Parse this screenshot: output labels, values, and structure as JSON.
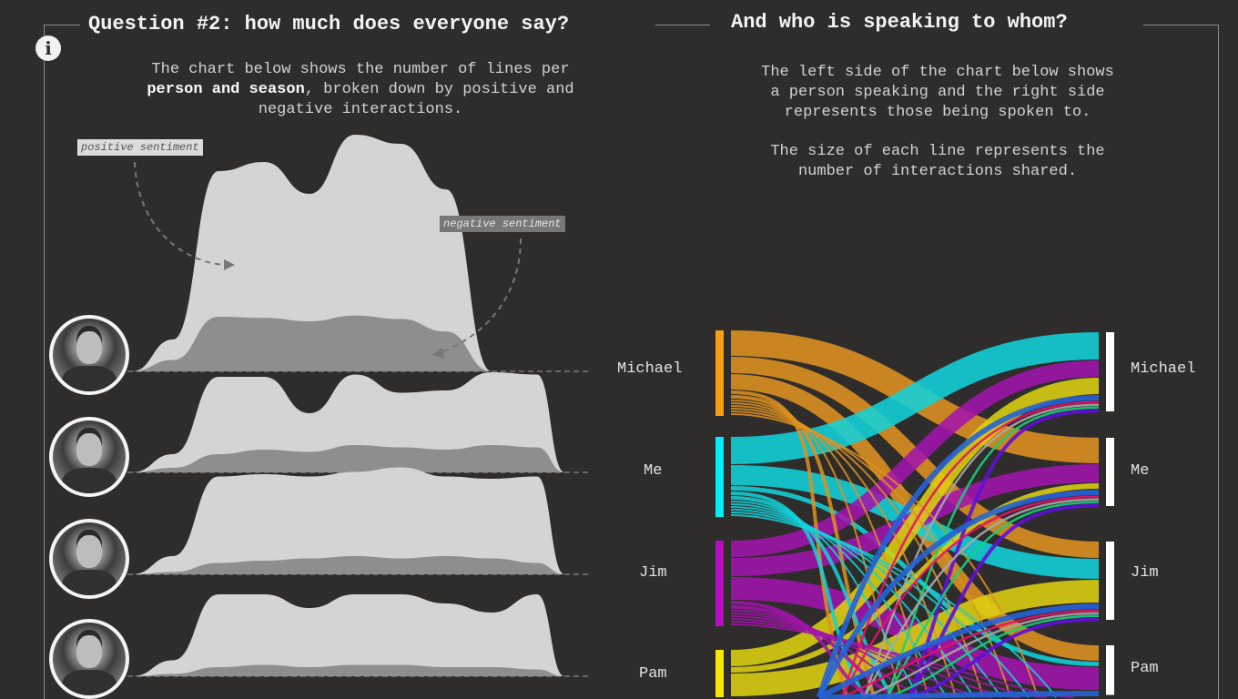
{
  "left_panel": {
    "title": "Question #2: how much does everyone say?",
    "desc_line1": "The chart below shows the number of lines per",
    "desc_bold": "person and season",
    "desc_line2_rest": ", broken down by positive and",
    "desc_line3": "negative interactions.",
    "info_icon": "i",
    "annotation_positive": "positive sentiment",
    "annotation_negative": "negative sentiment"
  },
  "right_panel": {
    "title": "And who is speaking to whom?",
    "desc_p1": [
      "The left side of the chart below shows",
      "a person speaking and the right side",
      "represents those being spoken to."
    ],
    "desc_p2": [
      "The size of each line represents the",
      "number of interactions shared."
    ]
  },
  "chart_data": [
    {
      "type": "area",
      "subtype": "ridgeline",
      "colors": {
        "positive": "#d4d4d4",
        "negative": "#8e8e8e"
      },
      "rows": [
        {
          "avatar": "michael-photo",
          "positive": [
            280,
            1760,
            1840,
            1560,
            2080,
            2000,
            1600,
            0,
            0
          ],
          "negative": [
            100,
            480,
            470,
            440,
            490,
            460,
            350,
            0,
            0
          ]
        },
        {
          "avatar": "dwight-photo",
          "positive": [
            160,
            840,
            840,
            520,
            860,
            700,
            720,
            880,
            860
          ],
          "negative": [
            40,
            160,
            200,
            180,
            240,
            220,
            200,
            240,
            220
          ]
        },
        {
          "avatar": "jim-photo",
          "positive": [
            160,
            860,
            880,
            860,
            900,
            940,
            860,
            840,
            860
          ],
          "negative": [
            20,
            100,
            120,
            140,
            160,
            140,
            160,
            140,
            100
          ]
        },
        {
          "avatar": "pam-photo",
          "positive": [
            140,
            720,
            720,
            600,
            720,
            720,
            640,
            560,
            720
          ],
          "negative": [
            20,
            80,
            100,
            80,
            100,
            100,
            80,
            80,
            60
          ]
        }
      ]
    },
    {
      "type": "sankey",
      "sources": [
        {
          "name": "Michael",
          "color": "#f5a012",
          "link_color": "#de9220"
        },
        {
          "name": "Me",
          "color": "#00eef8",
          "link_color": "#12d2da"
        },
        {
          "name": "Jim",
          "color": "#b810c0",
          "link_color": "#a214ac"
        },
        {
          "name": "Pam",
          "color": "#f8e800",
          "link_color": "#ddd010"
        }
      ],
      "targets": [
        "Michael",
        "Me",
        "Jim",
        "Pam"
      ],
      "links": [
        {
          "source": "Michael",
          "target": "Me",
          "value": 28
        },
        {
          "source": "Michael",
          "target": "Jim",
          "value": 18
        },
        {
          "source": "Michael",
          "target": "Pam",
          "value": 17
        },
        {
          "source": "Me",
          "target": "Michael",
          "value": 30
        },
        {
          "source": "Me",
          "target": "Jim",
          "value": 22
        },
        {
          "source": "Me",
          "target": "Pam",
          "value": 5
        },
        {
          "source": "Jim",
          "target": "Michael",
          "value": 18
        },
        {
          "source": "Jim",
          "target": "Me",
          "value": 20
        },
        {
          "source": "Jim",
          "target": "Pam",
          "value": 25
        },
        {
          "source": "Pam",
          "target": "Michael",
          "value": 18
        },
        {
          "source": "Pam",
          "target": "Me",
          "value": 6
        },
        {
          "source": "Pam",
          "target": "Jim",
          "value": 25
        }
      ],
      "other_link_colors": [
        "#2563d6",
        "#e8106c",
        "#a8a8a8",
        "#12d47a",
        "#6010d8"
      ],
      "target_node_color": "#ffffff"
    }
  ]
}
